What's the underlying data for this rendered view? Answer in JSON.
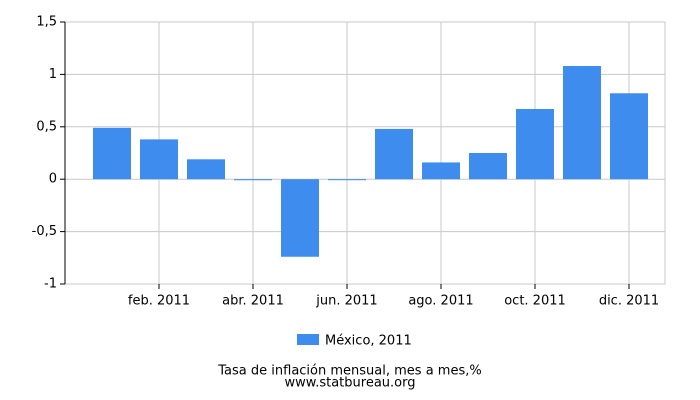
{
  "chart_data": {
    "type": "bar",
    "title": "Tasa de inflación mensual, mes a mes,%",
    "source": "www.statbureau.org",
    "categories": [
      null,
      "feb. 2011",
      null,
      "abr. 2011",
      null,
      "jun. 2011",
      null,
      "ago. 2011",
      null,
      "oct. 2011",
      null,
      "dic. 2011"
    ],
    "series": [
      {
        "name": "México, 2011",
        "color": "#3f8cef",
        "values": [
          0.49,
          0.38,
          0.19,
          -0.01,
          -0.74,
          0.0,
          0.48,
          0.16,
          0.25,
          0.67,
          1.08,
          0.82
        ]
      }
    ],
    "ylim": [
      -1,
      1.5
    ],
    "yticks": [
      -1,
      {
        "value": -0.5,
        "label": "-0,5"
      },
      0,
      {
        "value": 0.5,
        "label": "0,5"
      },
      1,
      {
        "value": 1.5,
        "label": "1,5"
      }
    ],
    "grid": true
  }
}
